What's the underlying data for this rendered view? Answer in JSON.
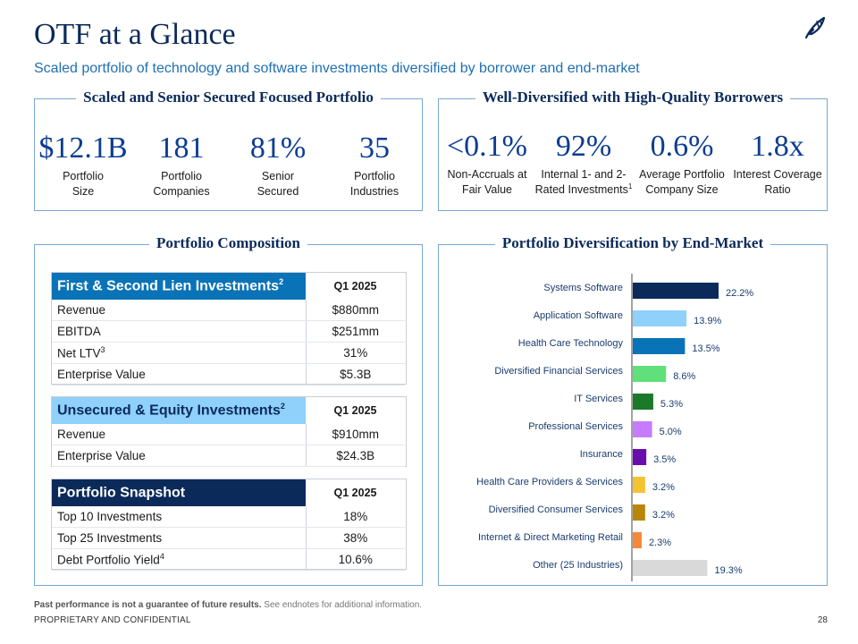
{
  "header": {
    "title": "OTF at a Glance",
    "subtitle": "Scaled portfolio of technology and software investments diversified by borrower and end-market",
    "logo_icon": "quill-feather-icon"
  },
  "panels": {
    "scaled": {
      "title": "Scaled and Senior Secured Focused Portfolio",
      "stats": [
        {
          "value": "$12.1B",
          "label1": "Portfolio",
          "label2": "Size"
        },
        {
          "value": "181",
          "label1": "Portfolio",
          "label2": "Companies"
        },
        {
          "value": "81%",
          "label1": "Senior",
          "label2": "Secured"
        },
        {
          "value": "35",
          "label1": "Portfolio",
          "label2": "Industries"
        }
      ]
    },
    "diversified": {
      "title": "Well-Diversified with High-Quality Borrowers",
      "stats": [
        {
          "value": "<0.1%",
          "label1": "Non-Accruals at",
          "label2": "Fair Value",
          "sup": ""
        },
        {
          "value": "92%",
          "label1": "Internal 1- and 2-",
          "label2": "Rated Investments",
          "sup": "1"
        },
        {
          "value": "0.6%",
          "label1": "Average Portfolio",
          "label2": "Company Size",
          "sup": ""
        },
        {
          "value": "1.8x",
          "label1": "Interest Coverage",
          "label2": "Ratio",
          "sup": ""
        }
      ]
    },
    "composition": {
      "title": "Portfolio Composition",
      "tables": [
        {
          "header": "First & Second Lien Investments",
          "header_sup": "2",
          "period": "Q1 2025",
          "rows": [
            {
              "label": "Revenue",
              "sup": "",
              "value": "$880mm"
            },
            {
              "label": "EBITDA",
              "sup": "",
              "value": "$251mm"
            },
            {
              "label": "Net LTV",
              "sup": "3",
              "value": "31%"
            },
            {
              "label": "Enterprise Value",
              "sup": "",
              "value": "$5.3B"
            }
          ]
        },
        {
          "header": "Unsecured & Equity Investments",
          "header_sup": "2",
          "period": "Q1 2025",
          "rows": [
            {
              "label": "Revenue",
              "sup": "",
              "value": "$910mm"
            },
            {
              "label": "Enterprise Value",
              "sup": "",
              "value": "$24.3B"
            }
          ]
        },
        {
          "header": "Portfolio Snapshot",
          "header_sup": "",
          "period": "Q1 2025",
          "rows": [
            {
              "label": "Top 10 Investments",
              "sup": "",
              "value": "18%"
            },
            {
              "label": "Top 25 Investments",
              "sup": "",
              "value": "38%"
            },
            {
              "label": "Debt Portfolio Yield",
              "sup": "4",
              "value": "10.6%"
            }
          ]
        }
      ],
      "colors": {
        "lien": "#0a73b7",
        "unsecured": "#8fd1fb",
        "snapshot": "#0b2a5a"
      }
    },
    "diversification": {
      "title": "Portfolio Diversification by End-Market"
    }
  },
  "chart_data": {
    "type": "bar",
    "orientation": "horizontal",
    "categories": [
      "Systems Software",
      "Application Software",
      "Health Care Technology",
      "Diversified Financial Services",
      "IT Services",
      "Professional Services",
      "Insurance",
      "Health Care Providers & Services",
      "Diversified Consumer Services",
      "Internet & Direct Marketing Retail",
      "Other (25 Industries)"
    ],
    "values": [
      22.2,
      13.9,
      13.5,
      8.6,
      5.3,
      5.0,
      3.5,
      3.2,
      3.2,
      2.3,
      19.3
    ],
    "value_labels": [
      "22.2%",
      "13.9%",
      "13.5%",
      "8.6%",
      "5.3%",
      "5.0%",
      "3.5%",
      "3.2%",
      "3.2%",
      "2.3%",
      "19.3%"
    ],
    "colors": [
      "#0b2a5a",
      "#8fd1fb",
      "#0a73b7",
      "#5fe07a",
      "#1a7a2a",
      "#c77cff",
      "#6a0dad",
      "#f5c232",
      "#b8860b",
      "#f5883a",
      "#d9d9d9"
    ],
    "unit": "%",
    "xlim": [
      0,
      22.2
    ]
  },
  "footer": {
    "disclaimer_bold": "Past performance is not a guarantee of future results.",
    "disclaimer_rest": " See endnotes for additional information.",
    "confidential": "PROPRIETARY AND CONFIDENTIAL",
    "page_number": "28"
  }
}
